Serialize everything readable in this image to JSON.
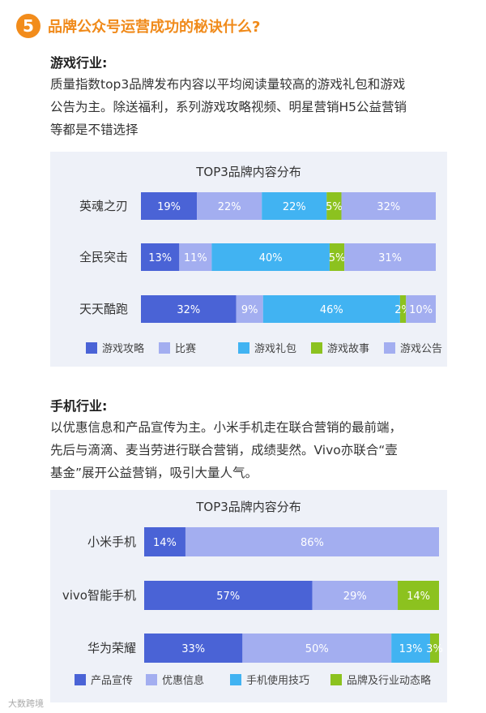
{
  "header": {
    "number": "5",
    "title": "品牌公众号运营成功的秘诀什么?"
  },
  "section1": {
    "title": "游戏行业:",
    "lines": [
      "质量指数top3品牌发布内容以平均阅读量较高的游戏礼包和游戏",
      "公告为主。除送福利，系列游戏攻略视频、明星营销H5公益营销",
      "等都是不错选择"
    ]
  },
  "section2": {
    "title": "手机行业:",
    "lines": [
      "以优惠信息和产品宣传为主。小米手机走在联合营销的最前端，",
      "先后与滴滴、麦当劳进行联合营销，成绩斐然。Vivo亦联合“壹",
      "基金”展开公益营销，吸引大量人气。"
    ]
  },
  "watermark": "大数跨境",
  "chart_data": [
    {
      "type": "bar",
      "orientation": "horizontal-stacked",
      "title": "TOP3品牌内容分布",
      "categories": [
        "英魂之刃",
        "全民突击",
        "天天酷跑"
      ],
      "series": [
        {
          "name": "游戏攻略",
          "color": "#4a63d6",
          "values": [
            19,
            13,
            32
          ]
        },
        {
          "name": "比赛",
          "color": "#a3aef0",
          "values": [
            22,
            11,
            9
          ]
        },
        {
          "name": "游戏礼包",
          "color": "#41b3f2",
          "values": [
            22,
            40,
            46
          ]
        },
        {
          "name": "游戏故事",
          "color": "#8cc21f",
          "values": [
            5,
            5,
            2
          ]
        },
        {
          "name": "游戏公告",
          "color": "#a3aef0",
          "values": [
            32,
            31,
            10
          ]
        }
      ],
      "legend": "bottom"
    },
    {
      "type": "bar",
      "orientation": "horizontal-stacked",
      "title": "TOP3品牌内容分布",
      "categories": [
        "小米手机",
        "vivo智能手机",
        "华为荣耀"
      ],
      "series": [
        {
          "name": "产品宣传",
          "color": "#4a63d6",
          "values": [
            14,
            57,
            33
          ]
        },
        {
          "name": "优惠信息",
          "color": "#a3aef0",
          "values": [
            86,
            29,
            50
          ]
        },
        {
          "name": "手机使用技巧",
          "color": "#41b3f2",
          "values": [
            0,
            0,
            13
          ]
        },
        {
          "name": "品牌及行业动态略",
          "color": "#8cc21f",
          "values": [
            0,
            14,
            3
          ]
        }
      ],
      "legend": "bottom"
    }
  ]
}
